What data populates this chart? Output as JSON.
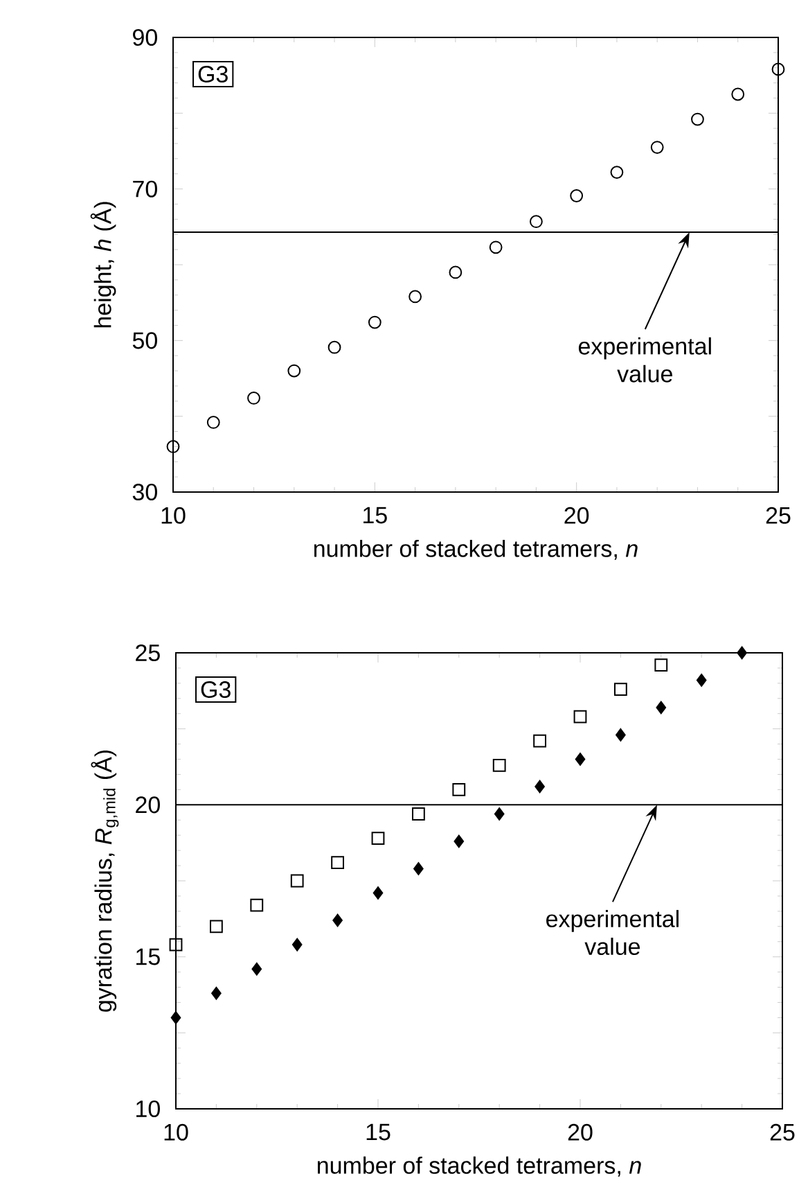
{
  "chart_data": [
    {
      "type": "scatter",
      "xlabel": "number of stacked tetramers, *n*",
      "ylabel": "height, *h* (Å)",
      "xlim": [
        10,
        25
      ],
      "xticks": [
        10,
        15,
        20,
        25
      ],
      "ylim": [
        30,
        90
      ],
      "yticks": [
        30,
        {
          "value": 40,
          "label": null
        },
        50,
        {
          "value": 60,
          "label": null
        },
        70,
        {
          "value": 80,
          "label": null
        },
        90
      ],
      "series": [
        {
          "color": "#000000",
          "marker": "circle",
          "x": [
            10,
            11,
            12,
            13,
            14,
            15,
            16,
            17,
            18,
            19,
            20,
            21,
            22,
            23,
            24,
            25
          ],
          "values": [
            36.0,
            39.2,
            42.4,
            46.0,
            49.1,
            52.4,
            55.8,
            59.0,
            62.3,
            65.7,
            69.1,
            72.2,
            75.5,
            79.2,
            82.5,
            85.8
          ]
        }
      ],
      "ref_lines": [
        {
          "axis": "y",
          "value": 64.3,
          "color": "#000000"
        }
      ],
      "annotations": [
        "G3",
        {
          "text": "experimental value",
          "x": 22.8,
          "y": 64.3
        }
      ]
    },
    {
      "type": "scatter",
      "xlabel": "number of stacked tetramers, *n*",
      "ylabel": "gyration radius, *R*$_{g,mid}$ (Å)",
      "xlim": [
        10,
        25
      ],
      "xticks": [
        10,
        15,
        20,
        25
      ],
      "ylim": [
        10,
        25
      ],
      "yticks": [
        10,
        {
          "value": 12.5,
          "label": null
        },
        15,
        {
          "value": 17.5,
          "label": null
        },
        20,
        {
          "value": 22.5,
          "label": null
        },
        25
      ],
      "series": [
        {
          "color": "#000000",
          "marker": "square",
          "x": [
            10,
            11,
            12,
            13,
            14,
            15,
            16,
            17,
            18,
            19,
            20,
            21,
            22
          ],
          "values": [
            15.4,
            16.0,
            16.7,
            17.5,
            18.1,
            18.9,
            19.7,
            20.5,
            21.3,
            22.1,
            22.9,
            23.8,
            24.6
          ]
        },
        {
          "color": "#000000",
          "marker": "diamond",
          "x": [
            10,
            11,
            12,
            13,
            14,
            15,
            16,
            17,
            18,
            19,
            20,
            21,
            22,
            23,
            24
          ],
          "values": [
            13.0,
            13.8,
            14.6,
            15.4,
            16.2,
            17.1,
            17.9,
            18.8,
            19.7,
            20.6,
            21.5,
            22.3,
            23.2,
            24.1,
            25.0
          ]
        }
      ],
      "ref_lines": [
        {
          "axis": "y",
          "value": 20,
          "color": "#000000"
        }
      ],
      "annotations": [
        "G3",
        {
          "text": "experimental value",
          "x": 21.9,
          "y": 20
        }
      ]
    }
  ]
}
